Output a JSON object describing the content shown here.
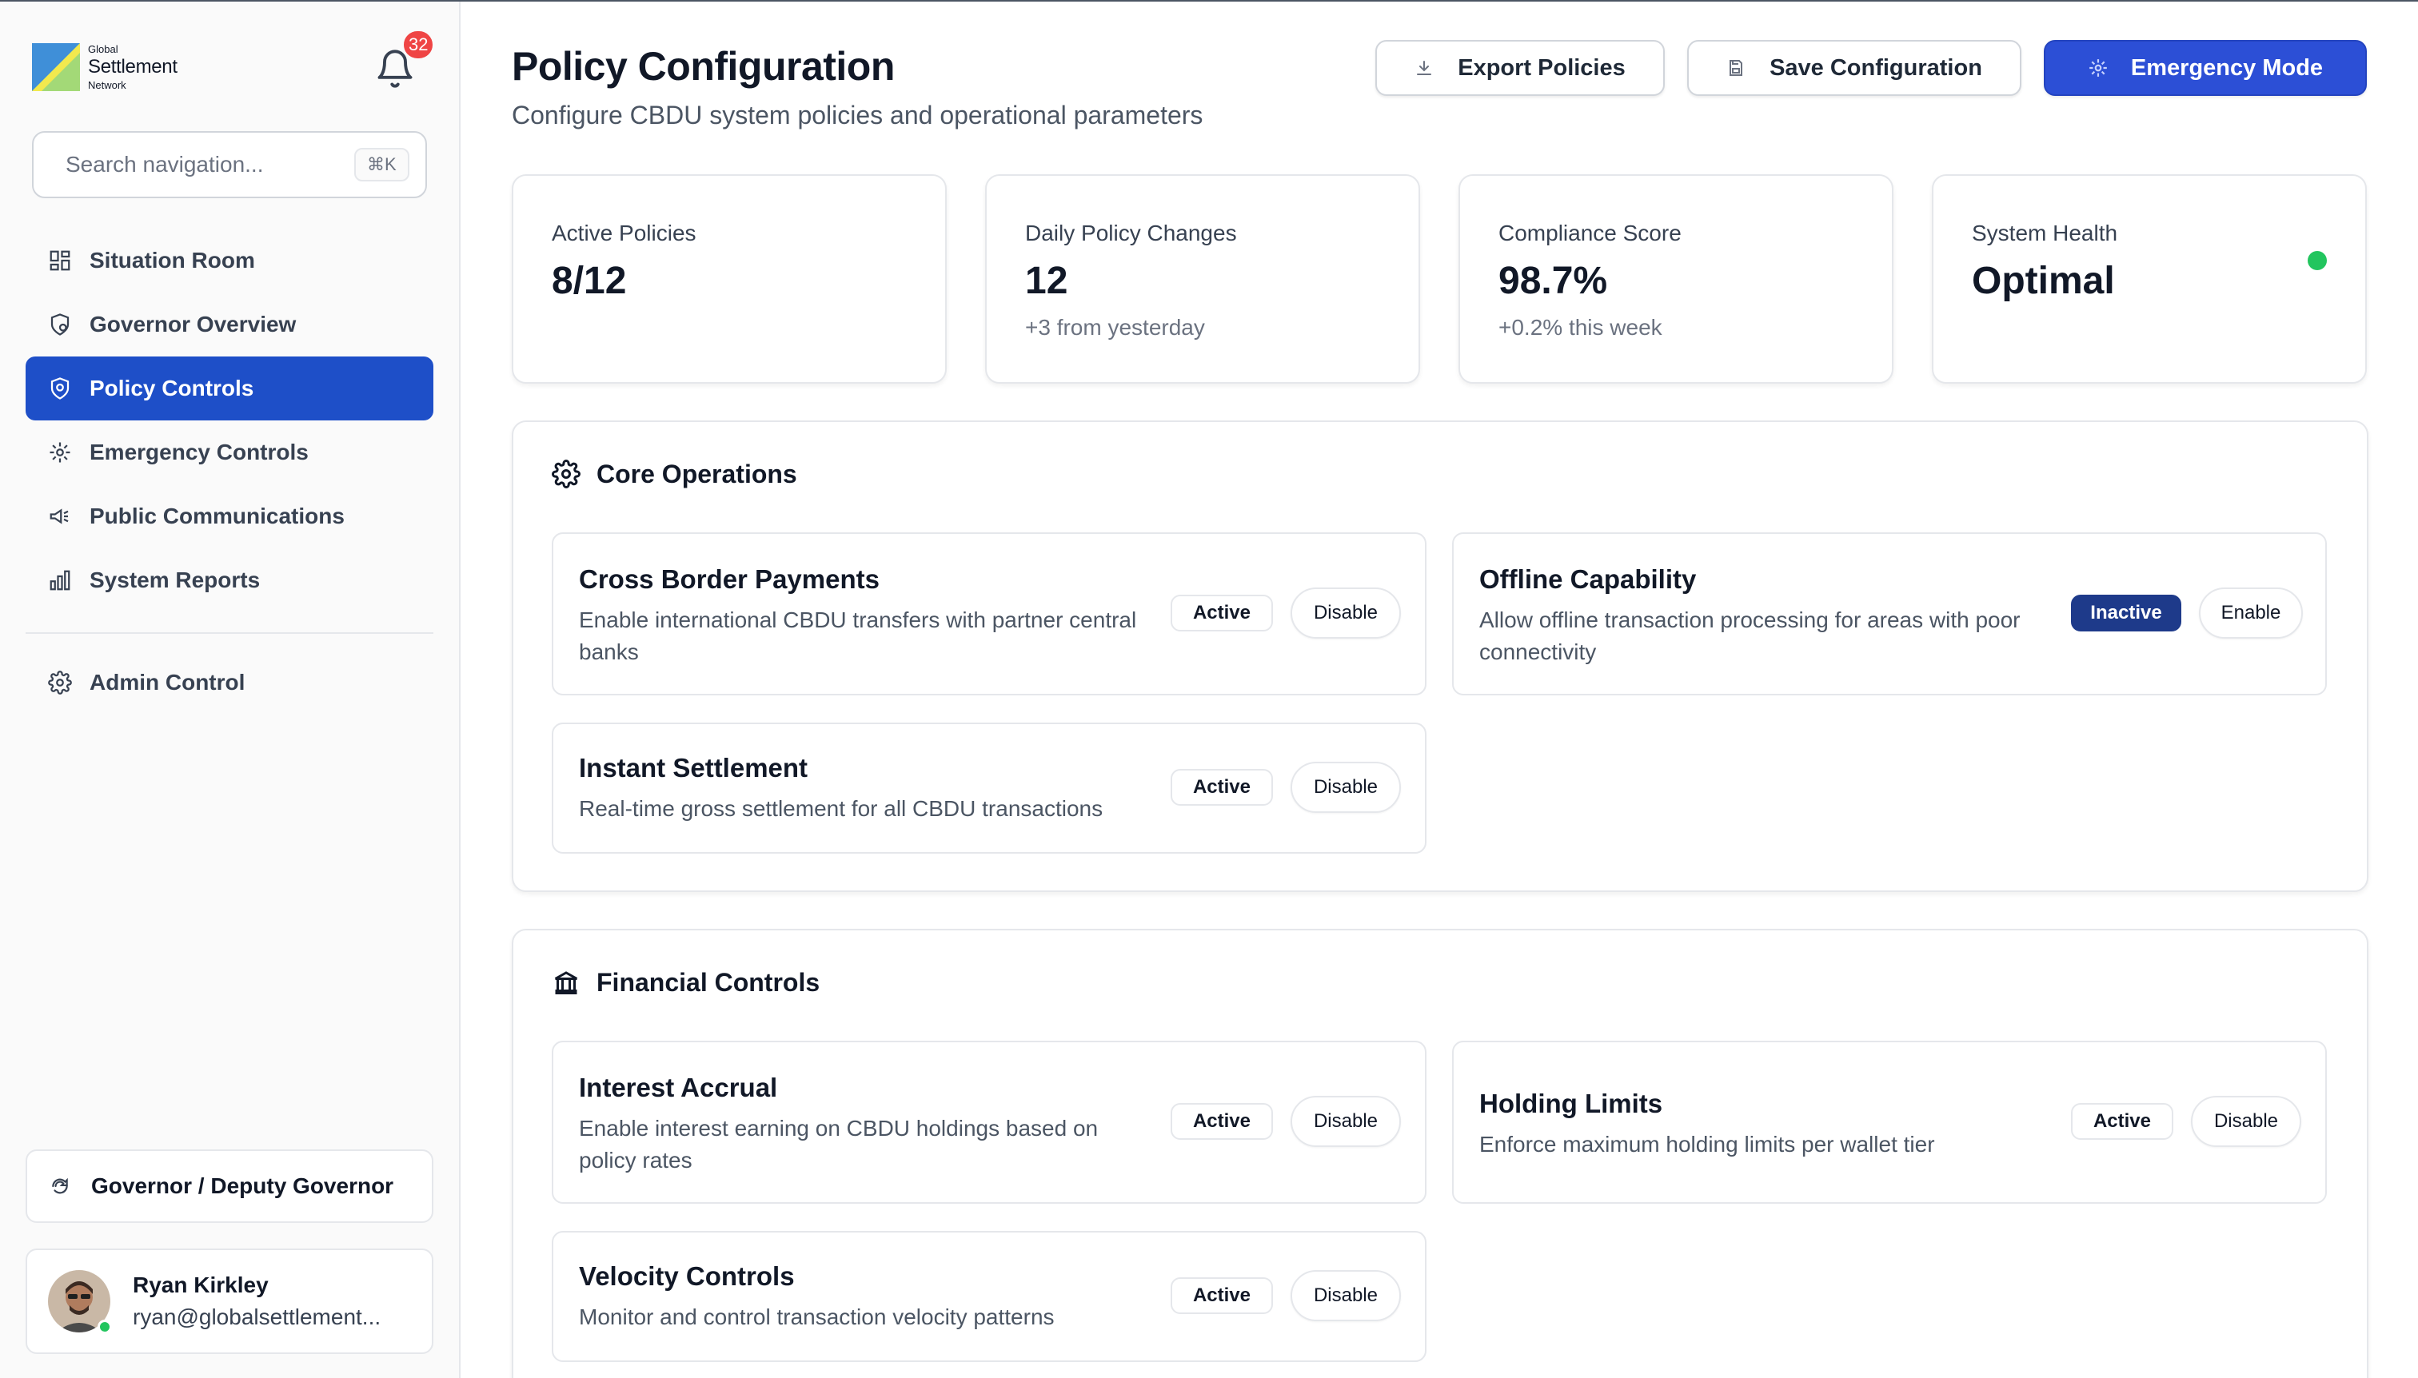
{
  "colors": {
    "brand": "#1e4fc8",
    "emergency": "#2c4fd6",
    "danger_badge": "#ef4444",
    "online": "#22c55e",
    "inactive_badge": "#1e3a8a"
  },
  "logo": {
    "top": "Global",
    "main": "Settlement",
    "bottom": "Network"
  },
  "notifications": {
    "count": "32",
    "icon": "bell-icon"
  },
  "search": {
    "placeholder": "Search navigation...",
    "shortcut": "⌘K"
  },
  "nav": {
    "items": [
      {
        "label": "Situation Room",
        "icon": "dashboard-icon"
      },
      {
        "label": "Governor Overview",
        "icon": "shield-user-icon"
      },
      {
        "label": "Policy Controls",
        "icon": "shield-icon",
        "active": true
      },
      {
        "label": "Emergency Controls",
        "icon": "snowflake-gear-icon"
      },
      {
        "label": "Public Communications",
        "icon": "megaphone-icon"
      },
      {
        "label": "System Reports",
        "icon": "bar-chart-icon"
      }
    ],
    "admin": {
      "label": "Admin Control",
      "icon": "gear-icon"
    }
  },
  "role": {
    "label": "Governor / Deputy Governor",
    "icon": "switch-icon"
  },
  "user": {
    "name": "Ryan Kirkley",
    "email": "ryan@globalsettlement..."
  },
  "header": {
    "title": "Policy Configuration",
    "subtitle": "Configure CBDU system policies and operational parameters",
    "export_label": "Export Policies",
    "save_label": "Save Configuration",
    "emergency_label": "Emergency Mode"
  },
  "stats": [
    {
      "label": "Active Policies",
      "value": "8/12",
      "sub": ""
    },
    {
      "label": "Daily Policy Changes",
      "value": "12",
      "sub": "+3 from yesterday"
    },
    {
      "label": "Compliance Score",
      "value": "98.7%",
      "sub": "+0.2% this week"
    },
    {
      "label": "System Health",
      "value": "Optimal",
      "sub": "",
      "status": "green"
    }
  ],
  "sections": {
    "core": {
      "title": "Core Operations",
      "icon": "gear-icon",
      "policies": [
        {
          "title": "Cross Border Payments",
          "desc": "Enable international CBDU transfers with partner central banks",
          "status": "Active",
          "action": "Disable"
        },
        {
          "title": "Offline Capability",
          "desc": "Allow offline transaction processing for areas with poor connectivity",
          "status": "Inactive",
          "action": "Enable"
        },
        {
          "title": "Instant Settlement",
          "desc": "Real-time gross settlement for all CBDU transactions",
          "status": "Active",
          "action": "Disable"
        }
      ]
    },
    "financial": {
      "title": "Financial Controls",
      "icon": "bank-icon",
      "policies": [
        {
          "title": "Interest Accrual",
          "desc": "Enable interest earning on CBDU holdings based on policy rates",
          "status": "Active",
          "action": "Disable"
        },
        {
          "title": "Holding Limits",
          "desc": "Enforce maximum holding limits per wallet tier",
          "status": "Active",
          "action": "Disable"
        },
        {
          "title": "Velocity Controls",
          "desc": "Monitor and control transaction velocity patterns",
          "status": "Active",
          "action": "Disable"
        }
      ]
    }
  }
}
